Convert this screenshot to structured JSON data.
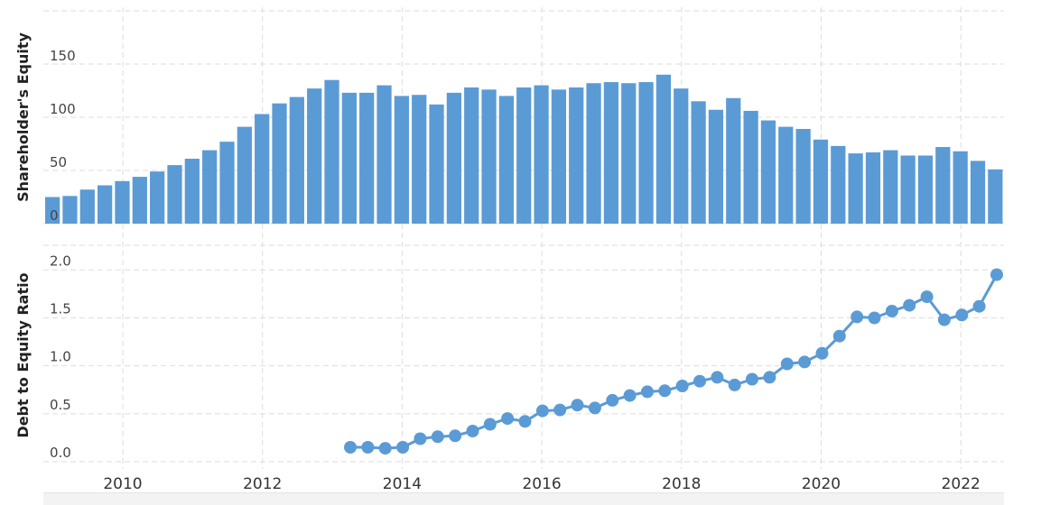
{
  "colors": {
    "accent": "#5b9bd5",
    "grid": "#dddddd"
  },
  "chart_data": [
    {
      "type": "bar",
      "ylabel": "Shareholder's Equity",
      "ylim": [
        0,
        200
      ],
      "yticks": [
        "0",
        "50",
        "100",
        "150"
      ],
      "grid": true,
      "x_start_year": 2009.0,
      "x_step_years": 0.25,
      "values": [
        25,
        26,
        32,
        36,
        40,
        44,
        49,
        55,
        61,
        69,
        77,
        91,
        103,
        113,
        119,
        127,
        135,
        123,
        123,
        130,
        120,
        121,
        112,
        123,
        128,
        126,
        120,
        128,
        130,
        126,
        128,
        132,
        133,
        132,
        133,
        140,
        127,
        115,
        107,
        118,
        106,
        97,
        91,
        89,
        79,
        73,
        66,
        67,
        69,
        64,
        64,
        72,
        68,
        59,
        51
      ]
    },
    {
      "type": "line",
      "ylabel": "Debt to Equity Ratio",
      "ylim": [
        0,
        2.2
      ],
      "yticks": [
        "0.0",
        "0.5",
        "1.0",
        "1.5",
        "2.0"
      ],
      "grid": true,
      "x_start_year": 2013.25,
      "x_step_years": 0.25,
      "values": [
        0.15,
        0.15,
        0.14,
        0.15,
        0.24,
        0.26,
        0.27,
        0.32,
        0.39,
        0.45,
        0.42,
        0.53,
        0.54,
        0.59,
        0.56,
        0.64,
        0.69,
        0.73,
        0.74,
        0.79,
        0.84,
        0.88,
        0.8,
        0.86,
        0.88,
        1.02,
        1.04,
        1.13,
        1.31,
        1.51,
        1.5,
        1.57,
        1.63,
        1.72,
        1.48,
        1.53,
        1.62,
        1.95
      ]
    }
  ],
  "x_axis": {
    "tick_labels": [
      "2010",
      "2012",
      "2014",
      "2016",
      "2018",
      "2020",
      "2022"
    ]
  }
}
